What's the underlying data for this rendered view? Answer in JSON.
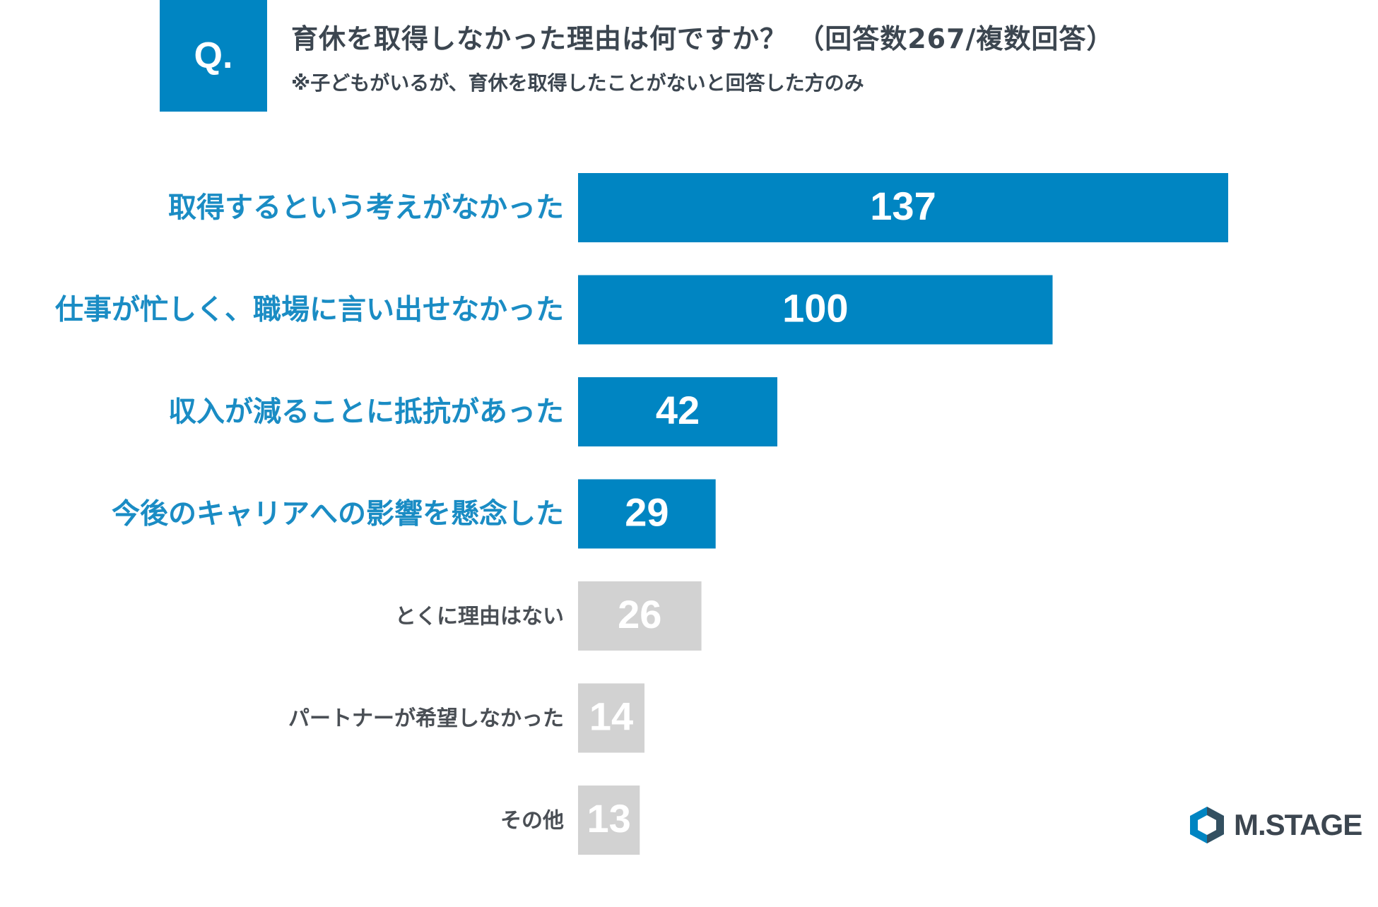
{
  "question": {
    "label": "Q.",
    "title": "育休を取得しなかった理由は何ですか？ （回答数267/複数回答）",
    "note": "※子どもがいるが、育休を取得したことがないと回答した方のみ"
  },
  "logo": {
    "text": "M.STAGE"
  },
  "colors": {
    "highlight_bar": "#0085c2",
    "highlight_label": "#1a8cc4",
    "muted_bar": "#d2d2d2",
    "muted_label": "#4a4f55",
    "logo_accent": "#0085c2"
  },
  "chart_data": {
    "type": "bar",
    "orientation": "horizontal",
    "categories": [
      "取得するという考えがなかった",
      "仕事が忙しく、職場に言い出せなかった",
      "収入が減ることに抵抗があった",
      "今後のキャリアへの影響を懸念した",
      "とくに理由はない",
      "パートナーが希望しなかった",
      "その他"
    ],
    "values": [
      137,
      100,
      42,
      29,
      26,
      14,
      13
    ],
    "highlighted": [
      true,
      true,
      true,
      true,
      false,
      false,
      false
    ],
    "xlim": [
      0,
      137
    ],
    "grid": false,
    "legend": "none"
  }
}
